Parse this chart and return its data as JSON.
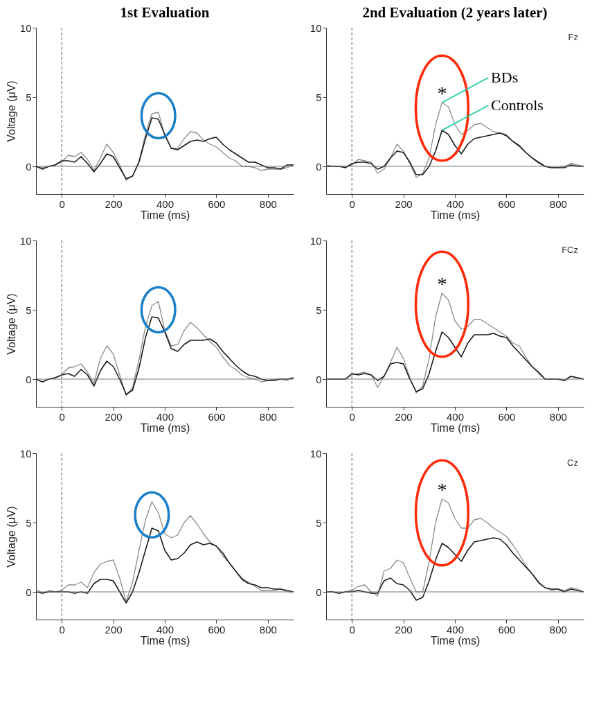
{
  "chart_data": [
    {
      "type": "line",
      "title": "1st Evaluation",
      "xlabel": "Time (ms)",
      "ylabel": "Voltage (μV)",
      "xlim": [
        -100,
        900
      ],
      "ylim": [
        -2,
        10
      ],
      "xticks": [
        0,
        200,
        400,
        600,
        800
      ],
      "yticks": [
        0,
        5,
        10
      ],
      "x": [
        -100,
        -75,
        -50,
        -25,
        0,
        25,
        50,
        75,
        100,
        125,
        150,
        175,
        200,
        225,
        250,
        275,
        300,
        325,
        350,
        375,
        400,
        425,
        450,
        475,
        500,
        525,
        550,
        575,
        600,
        625,
        650,
        675,
        700,
        725,
        750,
        775,
        800,
        825,
        850,
        875,
        900
      ],
      "series": [
        {
          "color": "#8c8c8c",
          "values": [
            0,
            -0.1,
            0,
            0.1,
            0.3,
            0.8,
            0.7,
            1.0,
            0.5,
            -0.3,
            0.6,
            1.6,
            1.0,
            0.1,
            -1.0,
            -0.7,
            0.4,
            2.3,
            3.8,
            3.9,
            2.2,
            1.3,
            1.3,
            2.0,
            2.5,
            2.4,
            1.9,
            1.6,
            1.4,
            1.0,
            0.6,
            0.4,
            0.0,
            0.0,
            -0.1,
            -0.3,
            -0.2,
            -0.2,
            -0.2,
            -0.1,
            0.1
          ]
        },
        {
          "color": "#1a1a1a",
          "values": [
            0,
            -0.2,
            0,
            0.1,
            0.4,
            0.4,
            0.3,
            0.7,
            0.2,
            -0.4,
            0.2,
            0.9,
            0.7,
            -0.1,
            -0.9,
            -0.7,
            0.3,
            2.0,
            3.5,
            3.4,
            2.3,
            1.3,
            1.2,
            1.5,
            1.8,
            1.9,
            1.8,
            2.0,
            2.1,
            1.6,
            1.2,
            0.9,
            0.6,
            0.3,
            0.3,
            0.1,
            -0.1,
            -0.1,
            -0.2,
            0.1,
            0.1
          ]
        }
      ],
      "ref_lines": [
        {
          "axis": "x",
          "value": 0,
          "line_style": "dashed",
          "color": "#555555"
        },
        {
          "axis": "y",
          "value": 0,
          "color": "#777777"
        }
      ]
    },
    {
      "type": "line",
      "title": "2nd Evaluation (2 years later)",
      "xlabel": "Time (ms)",
      "xlim": [
        -100,
        900
      ],
      "ylim": [
        -2,
        10
      ],
      "xticks": [
        0,
        200,
        400,
        600,
        800
      ],
      "yticks": [
        0,
        5,
        10
      ],
      "x": [
        -100,
        -75,
        -50,
        -25,
        0,
        25,
        50,
        75,
        100,
        125,
        150,
        175,
        200,
        225,
        250,
        275,
        300,
        325,
        350,
        375,
        400,
        425,
        450,
        475,
        500,
        525,
        550,
        575,
        600,
        625,
        650,
        675,
        700,
        725,
        750,
        775,
        800,
        825,
        850,
        875,
        900
      ],
      "series": [
        {
          "name": "BDs",
          "color": "#8c8c8c",
          "values": [
            0.1,
            0,
            0,
            0,
            0.1,
            0.5,
            0.4,
            0.3,
            -0.5,
            -0.2,
            0.6,
            1.6,
            1.1,
            0.2,
            -0.8,
            -0.5,
            0.6,
            3.0,
            4.6,
            4.3,
            3.0,
            2.3,
            2.6,
            3.0,
            3.1,
            2.8,
            2.5,
            2.4,
            2.3,
            1.8,
            1.4,
            1.0,
            0.6,
            0.2,
            0.0,
            -0.1,
            -0.1,
            0.0,
            0.2,
            0.1,
            0.0
          ]
        },
        {
          "name": "Controls",
          "color": "#1a1a1a",
          "values": [
            0,
            0,
            0,
            -0.1,
            0.2,
            0.3,
            0.3,
            0.2,
            -0.2,
            0.0,
            0.6,
            1.1,
            1.0,
            0.3,
            -0.6,
            -0.6,
            0.0,
            1.1,
            2.6,
            2.3,
            1.5,
            0.9,
            1.6,
            2.0,
            2.1,
            2.2,
            2.3,
            2.4,
            2.2,
            1.8,
            1.5,
            1.0,
            0.6,
            0.3,
            0.0,
            -0.1,
            -0.1,
            -0.1,
            0.1,
            0.0,
            0.0
          ]
        }
      ],
      "ref_lines": [
        {
          "axis": "x",
          "value": 0,
          "line_style": "dashed",
          "color": "#555555"
        },
        {
          "axis": "y",
          "value": 0,
          "color": "#777777"
        }
      ],
      "annotations": [
        "Fz",
        "*"
      ]
    },
    {
      "type": "line",
      "xlabel": "Time (ms)",
      "ylabel": "Voltage (μV)",
      "xlim": [
        -100,
        900
      ],
      "ylim": [
        -2,
        10
      ],
      "xticks": [
        0,
        200,
        400,
        600,
        800
      ],
      "yticks": [
        0,
        5,
        10
      ],
      "x": [
        -100,
        -75,
        -50,
        -25,
        0,
        25,
        50,
        75,
        100,
        125,
        150,
        175,
        200,
        225,
        250,
        275,
        300,
        325,
        350,
        375,
        400,
        425,
        450,
        475,
        500,
        525,
        550,
        575,
        600,
        625,
        650,
        675,
        700,
        725,
        750,
        775,
        800,
        825,
        850,
        875,
        900
      ],
      "series": [
        {
          "color": "#8c8c8c",
          "values": [
            0,
            -0.2,
            0,
            0.1,
            0.3,
            0.8,
            0.9,
            1.1,
            0.5,
            -0.3,
            1.5,
            2.4,
            1.8,
            0.3,
            -1.2,
            -0.6,
            1.4,
            3.8,
            5.3,
            5.6,
            3.5,
            2.4,
            2.5,
            3.5,
            4.1,
            3.7,
            3.2,
            2.7,
            2.3,
            1.6,
            1.0,
            0.7,
            0.3,
            0.1,
            0.0,
            -0.2,
            -0.1,
            0.0,
            0.0,
            -0.1,
            0.1
          ]
        },
        {
          "color": "#1a1a1a",
          "values": [
            0,
            -0.2,
            0,
            0.1,
            0.3,
            0.4,
            0.2,
            0.7,
            0.3,
            -0.5,
            0.6,
            1.3,
            0.9,
            0.0,
            -1.1,
            -0.8,
            0.8,
            3.0,
            4.5,
            4.4,
            3.4,
            2.2,
            2.0,
            2.5,
            2.8,
            2.8,
            2.8,
            2.9,
            2.6,
            2.0,
            1.5,
            1.0,
            0.6,
            0.3,
            0.2,
            0.0,
            -0.1,
            -0.1,
            0.0,
            0.0,
            0.1
          ]
        }
      ],
      "ref_lines": [
        {
          "axis": "x",
          "value": 0,
          "line_style": "dashed",
          "color": "#555555"
        },
        {
          "axis": "y",
          "value": 0,
          "color": "#777777"
        }
      ]
    },
    {
      "type": "line",
      "xlabel": "Time (ms)",
      "xlim": [
        -100,
        900
      ],
      "ylim": [
        -2,
        10
      ],
      "xticks": [
        0,
        200,
        400,
        600,
        800
      ],
      "yticks": [
        0,
        5,
        10
      ],
      "x": [
        -100,
        -75,
        -50,
        -25,
        0,
        25,
        50,
        75,
        100,
        125,
        150,
        175,
        200,
        225,
        250,
        275,
        300,
        325,
        350,
        375,
        400,
        425,
        450,
        475,
        500,
        525,
        550,
        575,
        600,
        625,
        650,
        675,
        700,
        725,
        750,
        775,
        800,
        825,
        850,
        875,
        900
      ],
      "series": [
        {
          "color": "#8c8c8c",
          "values": [
            0,
            0,
            0,
            0,
            0.3,
            0.4,
            0.5,
            0.3,
            -0.6,
            0.2,
            1.2,
            2.3,
            1.5,
            0.1,
            -1.0,
            -0.5,
            1.5,
            4.5,
            6.2,
            5.7,
            4.2,
            3.6,
            3.8,
            4.3,
            4.3,
            4.0,
            3.7,
            3.4,
            3.1,
            2.6,
            2.4,
            1.6,
            0.9,
            0.4,
            0.0,
            0.0,
            0.0,
            -0.1,
            0.2,
            0.1,
            0.0
          ]
        },
        {
          "color": "#1a1a1a",
          "values": [
            0,
            0,
            0,
            0,
            0.4,
            0.3,
            0.4,
            0.3,
            -0.1,
            0.2,
            1.1,
            1.2,
            1.1,
            0.0,
            -0.9,
            -0.7,
            0.4,
            2.0,
            3.4,
            3.0,
            2.3,
            1.6,
            2.6,
            3.2,
            3.2,
            3.2,
            3.3,
            3.1,
            3.0,
            2.4,
            1.9,
            1.4,
            0.9,
            0.5,
            0.0,
            0.0,
            0.0,
            -0.1,
            0.2,
            0.1,
            0.0
          ]
        }
      ],
      "ref_lines": [
        {
          "axis": "x",
          "value": 0,
          "line_style": "dashed",
          "color": "#555555"
        },
        {
          "axis": "y",
          "value": 0,
          "color": "#777777"
        }
      ],
      "annotations": [
        "FCz",
        "*"
      ]
    },
    {
      "type": "line",
      "xlabel": "Time (ms)",
      "ylabel": "Voltage (μV)",
      "xlim": [
        -100,
        900
      ],
      "ylim": [
        -2,
        10
      ],
      "xticks": [
        0,
        200,
        400,
        600,
        800
      ],
      "yticks": [
        0,
        5,
        10
      ],
      "x": [
        -100,
        -75,
        -50,
        -25,
        0,
        25,
        50,
        75,
        100,
        125,
        150,
        175,
        200,
        225,
        250,
        275,
        300,
        325,
        350,
        375,
        400,
        425,
        450,
        475,
        500,
        525,
        550,
        575,
        600,
        625,
        650,
        675,
        700,
        725,
        750,
        775,
        800,
        825,
        850,
        875,
        900
      ],
      "series": [
        {
          "color": "#8c8c8c",
          "values": [
            0.2,
            -0.1,
            0.1,
            0,
            0.1,
            0.5,
            0.5,
            0.7,
            0.3,
            1.4,
            2.0,
            2.2,
            2.3,
            1.0,
            -0.7,
            0.7,
            3.0,
            5.2,
            6.5,
            5.7,
            4.2,
            3.9,
            4.1,
            5.0,
            5.5,
            4.9,
            4.2,
            3.6,
            3.3,
            2.6,
            2.1,
            1.5,
            1.0,
            0.7,
            0.4,
            0.1,
            0.1,
            0.1,
            0.2,
            0.0,
            0.0
          ]
        },
        {
          "color": "#1a1a1a",
          "values": [
            0,
            -0.1,
            0,
            0,
            0,
            0,
            -0.1,
            0,
            -0.1,
            0.6,
            0.9,
            0.9,
            0.8,
            0.0,
            -0.8,
            0.0,
            1.4,
            3.0,
            4.6,
            4.4,
            3.0,
            2.3,
            2.4,
            2.8,
            3.4,
            3.6,
            3.4,
            3.5,
            3.3,
            2.8,
            2.1,
            1.5,
            0.9,
            0.6,
            0.5,
            0.3,
            0.3,
            0.2,
            0.2,
            0.1,
            0.0
          ]
        }
      ],
      "ref_lines": [
        {
          "axis": "x",
          "value": 0,
          "line_style": "dashed",
          "color": "#555555"
        },
        {
          "axis": "y",
          "value": 0,
          "color": "#777777"
        }
      ]
    },
    {
      "type": "line",
      "xlabel": "Time (ms)",
      "xlim": [
        -100,
        900
      ],
      "ylim": [
        -2,
        10
      ],
      "xticks": [
        0,
        200,
        400,
        600,
        800
      ],
      "yticks": [
        0,
        5,
        10
      ],
      "x": [
        -100,
        -75,
        -50,
        -25,
        0,
        25,
        50,
        75,
        100,
        125,
        150,
        175,
        200,
        225,
        250,
        275,
        300,
        325,
        350,
        375,
        400,
        425,
        450,
        475,
        500,
        525,
        550,
        575,
        600,
        625,
        650,
        675,
        700,
        725,
        750,
        775,
        800,
        825,
        850,
        875,
        900
      ],
      "series": [
        {
          "color": "#8c8c8c",
          "values": [
            0,
            0,
            -0.1,
            0,
            0.1,
            0.4,
            0.5,
            0,
            -0.3,
            1.5,
            1.7,
            2.3,
            2.1,
            1.0,
            0.0,
            0.0,
            2.2,
            5.0,
            6.7,
            6.4,
            5.3,
            4.6,
            4.6,
            5.2,
            5.3,
            5.0,
            4.6,
            4.3,
            4.0,
            3.4,
            2.7,
            1.9,
            1.3,
            0.6,
            0.3,
            0.1,
            0.2,
            0.1,
            0.3,
            0.2,
            0.0
          ]
        },
        {
          "color": "#1a1a1a",
          "values": [
            0,
            0,
            -0.1,
            0,
            0,
            0.1,
            0,
            -0.1,
            -0.1,
            0.8,
            1.0,
            0.6,
            0.5,
            0.1,
            -0.6,
            -0.4,
            0.8,
            2.3,
            3.5,
            3.2,
            2.7,
            2.2,
            3.0,
            3.6,
            3.7,
            3.8,
            3.9,
            3.8,
            3.4,
            2.8,
            2.3,
            1.8,
            1.3,
            0.7,
            0.3,
            0.2,
            0.2,
            0.0,
            0.2,
            0.1,
            0.0
          ]
        }
      ],
      "ref_lines": [
        {
          "axis": "x",
          "value": 0,
          "line_style": "dashed",
          "color": "#555555"
        },
        {
          "axis": "y",
          "value": 0,
          "color": "#777777"
        }
      ],
      "annotations": [
        "Cz",
        "*"
      ]
    }
  ]
}
